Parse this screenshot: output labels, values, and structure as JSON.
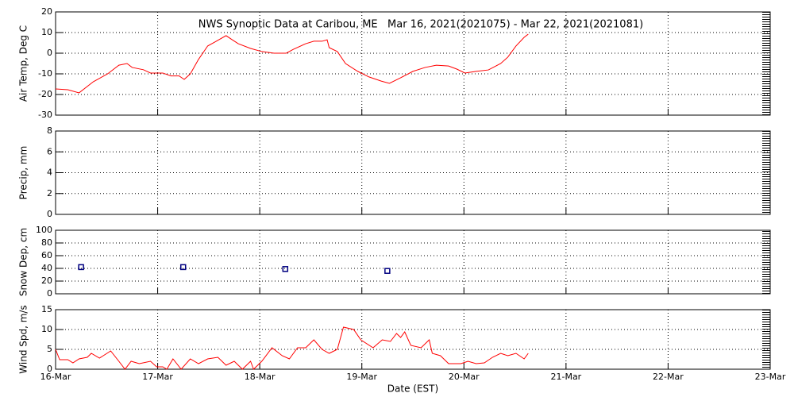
{
  "chart_data": [
    {
      "type": "line",
      "title": "NWS Synoptic Data at Caribou, ME   Mar 16, 2021(2021075) - Mar 22, 2021(2021081)",
      "ylabel": "Air Temp, Deg C",
      "xlim": [
        0,
        7
      ],
      "ylim": [
        -30,
        20
      ],
      "yticks": [
        -30,
        -20,
        -10,
        0,
        10,
        20
      ],
      "grid": true,
      "series": [
        {
          "color": "#ff0000",
          "x": [
            0,
            0.12,
            0.23,
            0.37,
            0.51,
            0.62,
            0.7,
            0.75,
            0.86,
            0.93,
            1.05,
            1.13,
            1.21,
            1.26,
            1.32,
            1.4,
            1.49,
            1.56,
            1.67,
            1.73,
            1.79,
            1.91,
            2.02,
            2.14,
            2.26,
            2.33,
            2.45,
            2.53,
            2.61,
            2.66,
            2.68,
            2.76,
            2.84,
            2.96,
            3.07,
            3.19,
            3.27,
            3.38,
            3.5,
            3.62,
            3.73,
            3.85,
            3.93,
            4.01,
            4.12,
            4.24,
            4.36,
            4.43,
            4.51,
            4.59,
            4.63
          ],
          "values": [
            -17.3,
            -17.7,
            -19.2,
            -13.8,
            -10,
            -5.8,
            -5,
            -6.9,
            -8,
            -9.6,
            -9.6,
            -11,
            -11,
            -12.7,
            -10,
            -3,
            3.5,
            5.4,
            8.5,
            6.5,
            4.6,
            2.3,
            0.8,
            0,
            0,
            1.9,
            4.6,
            5.8,
            5.8,
            6.5,
            2.7,
            0.8,
            -5,
            -8.8,
            -11.5,
            -13.5,
            -14.6,
            -11.9,
            -8.8,
            -6.9,
            -5.8,
            -6.2,
            -7.7,
            -9.6,
            -8.8,
            -8.1,
            -5,
            -1.9,
            3.5,
            7.7,
            9.2
          ]
        }
      ]
    },
    {
      "type": "line",
      "ylabel": "Precip, mm",
      "xlim": [
        0,
        7
      ],
      "ylim": [
        0,
        8
      ],
      "yticks": [
        0,
        2,
        4,
        6,
        8
      ],
      "grid": true,
      "series": []
    },
    {
      "type": "scatter",
      "ylabel": "Snow Dep, cm",
      "xlim": [
        0,
        7
      ],
      "ylim": [
        0,
        100
      ],
      "yticks": [
        0,
        20,
        40,
        60,
        80,
        100
      ],
      "grid": true,
      "series": [
        {
          "color": "#000080",
          "x": [
            0.25,
            1.25,
            2.25,
            3.25
          ],
          "values": [
            42,
            42,
            39,
            36
          ]
        }
      ]
    },
    {
      "type": "line",
      "ylabel": "Wind Spd, m/s",
      "xlabel": "Date (EST)",
      "xlim": [
        0,
        7
      ],
      "ylim": [
        0,
        15
      ],
      "yticks": [
        0,
        5,
        10,
        15
      ],
      "grid": true,
      "xticks": [
        {
          "value": 0,
          "label": "16-Mar"
        },
        {
          "value": 1,
          "label": "17-Mar"
        },
        {
          "value": 2,
          "label": "18-Mar"
        },
        {
          "value": 3,
          "label": "19-Mar"
        },
        {
          "value": 4,
          "label": "20-Mar"
        },
        {
          "value": 5,
          "label": "21-Mar"
        },
        {
          "value": 6,
          "label": "22-Mar"
        },
        {
          "value": 7,
          "label": "23-Mar"
        }
      ],
      "series": [
        {
          "color": "#ff0000",
          "x": [
            0,
            0.04,
            0.12,
            0.17,
            0.23,
            0.31,
            0.35,
            0.43,
            0.54,
            0.62,
            0.68,
            0.74,
            0.82,
            0.93,
            0.99,
            1.05,
            1.09,
            1.15,
            1.23,
            1.32,
            1.4,
            1.49,
            1.59,
            1.67,
            1.75,
            1.83,
            1.91,
            1.94,
            2.02,
            2.12,
            2.22,
            2.29,
            2.37,
            2.45,
            2.53,
            2.61,
            2.68,
            2.76,
            2.82,
            2.92,
            2.99,
            3.11,
            3.2,
            3.28,
            3.34,
            3.38,
            3.42,
            3.48,
            3.58,
            3.66,
            3.69,
            3.77,
            3.85,
            3.97,
            4.04,
            4.12,
            4.2,
            4.28,
            4.36,
            4.43,
            4.51,
            4.59,
            4.63
          ],
          "values": [
            5,
            2.4,
            2.4,
            1.6,
            2.6,
            3,
            4,
            2.8,
            4.6,
            2,
            0,
            2,
            1.4,
            2,
            0.6,
            0.6,
            0,
            2.6,
            0,
            2.6,
            1.4,
            2.6,
            3,
            1,
            2,
            0,
            2,
            0,
            2,
            5.4,
            3.4,
            2.6,
            5.4,
            5.4,
            7.4,
            5,
            4,
            5,
            10.6,
            10,
            7.4,
            5.4,
            7.4,
            7,
            9,
            8,
            9.4,
            6,
            5.4,
            7.4,
            4,
            3.4,
            1.4,
            1.4,
            2,
            1.4,
            1.6,
            3,
            4,
            3.4,
            4,
            2.6,
            4
          ]
        }
      ]
    }
  ]
}
